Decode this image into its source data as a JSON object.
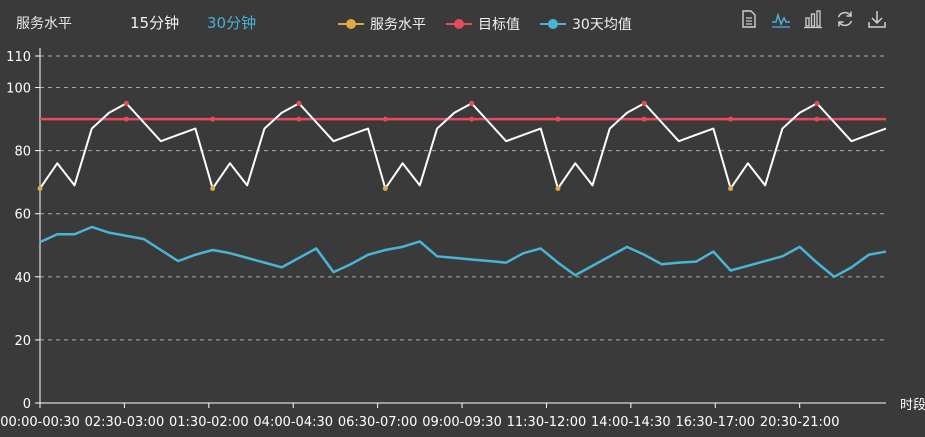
{
  "header": {
    "title": "服务水平",
    "tabs": [
      {
        "label": "15分钟",
        "active": false
      },
      {
        "label": "30分钟",
        "active": true
      }
    ]
  },
  "toolbox": [
    "data-view-icon",
    "line-chart-icon",
    "bar-chart-icon",
    "refresh-icon",
    "download-icon"
  ],
  "colors": {
    "service": "#e0a840",
    "target": "#e84a5a",
    "avg": "#4ab4d6",
    "service_line": "#ffffff",
    "background": "#3a3a3a",
    "grid": "#aaaaaa",
    "active_tab": "#4ab0d8"
  },
  "chart_data": {
    "type": "line",
    "xlabel": "时段",
    "ylabel": "",
    "ylim": [
      0,
      110
    ],
    "yticks": [
      0,
      20,
      40,
      60,
      80,
      100,
      110
    ],
    "grid": true,
    "legend_position": "top",
    "x_tick_labels": [
      "00:00-00:30",
      "02:30-03:00",
      "01:30-02:00",
      "04:00-04:30",
      "06:30-07:00",
      "09:00-09:30",
      "11:30-12:00",
      "14:00-14:30",
      "16:30-17:00",
      "20:30-21:00"
    ],
    "series": [
      {
        "name": "服务水平",
        "values": [
          68,
          76,
          69,
          87,
          92,
          95,
          89,
          83,
          85,
          87,
          68,
          76,
          69,
          87,
          92,
          95,
          89,
          83,
          85,
          87,
          68,
          76,
          69,
          87,
          92,
          95,
          89,
          83,
          85,
          87,
          68,
          76,
          69,
          87,
          92,
          95,
          89,
          83,
          85,
          87,
          68,
          76,
          69,
          87,
          92,
          95,
          89,
          83,
          85,
          87
        ]
      },
      {
        "name": "目标值",
        "values": [
          90,
          90,
          90,
          90,
          90,
          90,
          90,
          90,
          90,
          90,
          90,
          90,
          90,
          90,
          90,
          90,
          90,
          90,
          90,
          90,
          90,
          90,
          90,
          90,
          90,
          90,
          90,
          90,
          90,
          90,
          90,
          90,
          90,
          90,
          90,
          90,
          90,
          90,
          90,
          90,
          90,
          90,
          90,
          90,
          90,
          90,
          90,
          90,
          90,
          90
        ]
      },
      {
        "name": "30天均值",
        "values": [
          51,
          53.5,
          53.5,
          55.8,
          54,
          53,
          52,
          48.5,
          45,
          47,
          48.5,
          47.5,
          46,
          44.5,
          43,
          46,
          49,
          41.5,
          44,
          47,
          48.5,
          49.5,
          51.2,
          46.5,
          46,
          45.5,
          45,
          44.5,
          47.5,
          49,
          44.5,
          40.5,
          43.5,
          46.5,
          49.5,
          47,
          44,
          44.5,
          44.8,
          48,
          42,
          43.5,
          45,
          46.5,
          49.5,
          44.5,
          40,
          43,
          47,
          48
        ]
      }
    ]
  }
}
